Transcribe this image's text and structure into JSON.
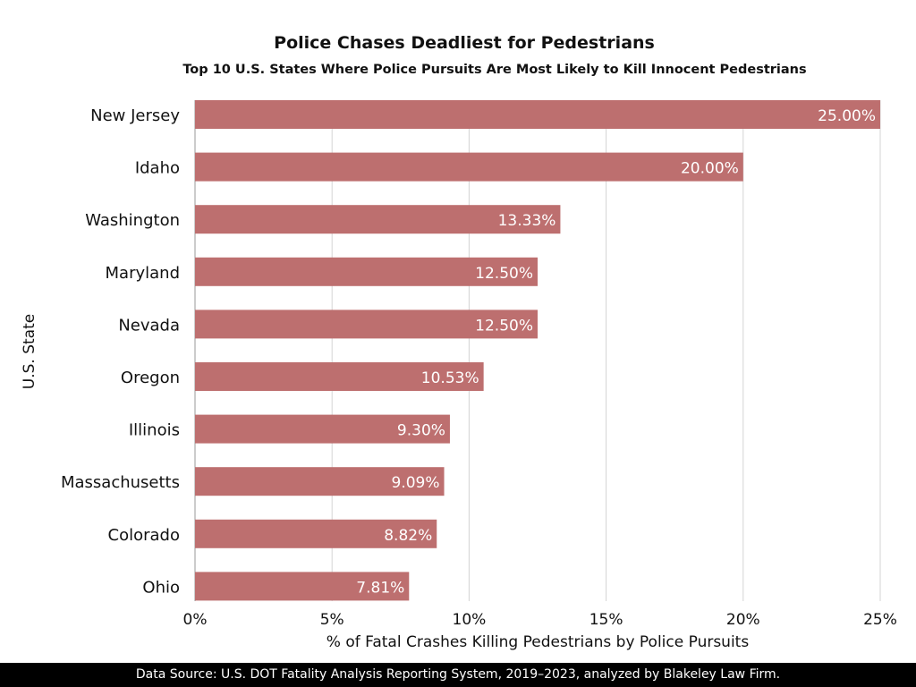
{
  "chart_data": {
    "type": "bar",
    "orientation": "horizontal",
    "title": "Police Chases Deadliest for Pedestrians",
    "subtitle": "Top 10 U.S. States Where Police Pursuits Are Most Likely to Kill Innocent Pedestrians",
    "xlabel": "% of Fatal Crashes Killing Pedestrians by Police Pursuits",
    "ylabel": "U.S. State",
    "categories": [
      "New Jersey",
      "Idaho",
      "Washington",
      "Maryland",
      "Nevada",
      "Oregon",
      "Illinois",
      "Massachusetts",
      "Colorado",
      "Ohio"
    ],
    "values": [
      25.0,
      20.0,
      13.33,
      12.5,
      12.5,
      10.53,
      9.3,
      9.09,
      8.82,
      7.81
    ],
    "data_labels": [
      "25.00%",
      "20.00%",
      "13.33%",
      "12.50%",
      "12.50%",
      "10.53%",
      "9.30%",
      "9.09%",
      "8.82%",
      "7.81%"
    ],
    "xlim": [
      0,
      25
    ],
    "xticks": [
      0,
      5,
      10,
      15,
      20,
      25
    ],
    "xtick_labels": [
      "0%",
      "5%",
      "10%",
      "15%",
      "20%",
      "25%"
    ],
    "grid": true,
    "bar_color": "#bd6f6f"
  },
  "footer": "Data Source: U.S. DOT Fatality Analysis Reporting System, 2019–2023, analyzed by Blakeley Law Firm."
}
